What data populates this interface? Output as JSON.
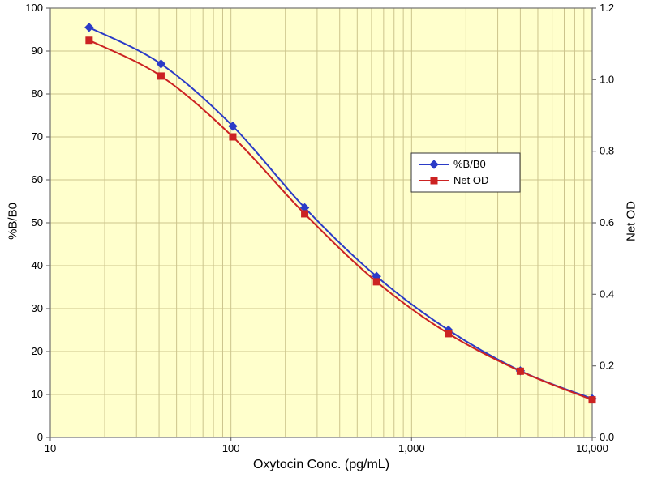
{
  "chart_data": {
    "type": "line",
    "title": "",
    "xlabel": "Oxytocin Conc. (pg/mL)",
    "ylabel_left": "%B/B0",
    "ylabel_right": "Net OD",
    "x_scale": "log",
    "xlim": [
      10,
      10000
    ],
    "ylim_left": [
      0,
      100
    ],
    "ylim_right": [
      0,
      1.2
    ],
    "x_ticks": [
      10,
      100,
      1000,
      10000
    ],
    "x_tick_labels": [
      "10",
      "100",
      "1,000",
      "10,000"
    ],
    "y_ticks_left": [
      0,
      10,
      20,
      30,
      40,
      50,
      60,
      70,
      80,
      90,
      100
    ],
    "y_tick_labels_left": [
      "0",
      "10",
      "20",
      "30",
      "40",
      "50",
      "60",
      "70",
      "80",
      "90",
      "100"
    ],
    "y_ticks_right": [
      0,
      0.2,
      0.4,
      0.6,
      0.8,
      1.0,
      1.2
    ],
    "y_tick_labels_right": [
      "0.0",
      "0.2",
      "0.4",
      "0.6",
      "0.8",
      "1.0",
      "1.2"
    ],
    "grid": true,
    "plot_bg": "#FFFFCC",
    "grid_color": "#CCC48C",
    "axis_color": "#707070",
    "text_color": "#000000",
    "legend": {
      "position": "middle-right",
      "background": "#FFFFFF",
      "border_color": "#333333"
    },
    "series": [
      {
        "name": "%B/B0",
        "axis": "left",
        "color": "#2B3BC7",
        "marker": "diamond",
        "x": [
          16.4,
          41,
          102.4,
          256,
          640,
          1600,
          4000,
          10000
        ],
        "y": [
          95.5,
          87,
          72.5,
          53.5,
          37.5,
          25,
          15.5,
          9
        ]
      },
      {
        "name": "Net OD",
        "axis": "right",
        "color": "#CC2222",
        "marker": "square",
        "x": [
          16.4,
          41,
          102.4,
          256,
          640,
          1600,
          4000,
          10000
        ],
        "y": [
          1.11,
          1.01,
          0.84,
          0.625,
          0.435,
          0.29,
          0.185,
          0.105
        ]
      }
    ]
  }
}
